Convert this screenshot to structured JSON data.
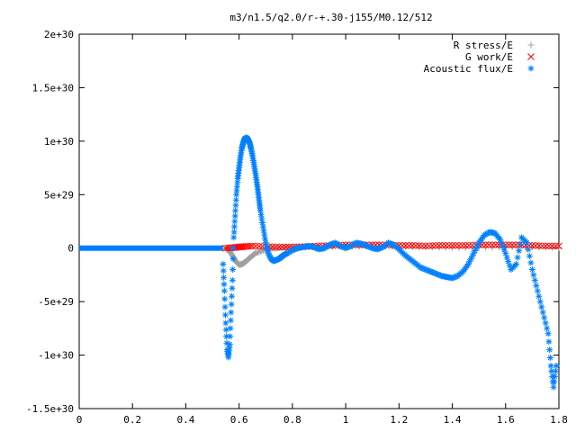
{
  "chart_data": {
    "type": "scatter",
    "title": "m3/n1.5/q2.0/r-+.30-j155/M0.12/512",
    "xlabel": "",
    "ylabel": "",
    "xlim": [
      0,
      1.8
    ],
    "ylim": [
      -1.5e+30,
      2e+30
    ],
    "x_ticks": [
      "0",
      "0.2",
      "0.4",
      "0.6",
      "0.8",
      "1",
      "1.2",
      "1.4",
      "1.6",
      "1.8"
    ],
    "x_tick_values": [
      0,
      0.2,
      0.4,
      0.6,
      0.8,
      1.0,
      1.2,
      1.4,
      1.6,
      1.8
    ],
    "y_ticks": [
      "-1.5e+30",
      "-1e+30",
      "-5e+29",
      "0",
      "5e+29",
      "1e+30",
      "1.5e+30",
      "2e+30"
    ],
    "y_tick_values": [
      -1.5e+30,
      -1e+30,
      -5e+29,
      0,
      5e+29,
      1e+30,
      1.5e+30,
      2e+30
    ],
    "grid": false,
    "legend_position": "top-right",
    "series": [
      {
        "name": "R stress/E",
        "marker": "+",
        "color": "#a0a0a0",
        "x": [
          0.55,
          0.56,
          0.57,
          0.58,
          0.59,
          0.6,
          0.61,
          0.62,
          0.63,
          0.64,
          0.65,
          0.66,
          0.68,
          0.7,
          0.72,
          0.74,
          0.76,
          0.78,
          0.8,
          0.85,
          0.9,
          1.0,
          1.1,
          1.2,
          1.3,
          1.4,
          1.5,
          1.6,
          1.7,
          1.8
        ],
        "y": [
          0,
          -2e+28,
          -5e+28,
          -9e+28,
          -1.3e+29,
          -1.55e+29,
          -1.5e+29,
          -1.35e+29,
          -1.15e+29,
          -9e+28,
          -7e+28,
          -5e+28,
          -3e+28,
          -1.5e+28,
          -5e+27,
          0,
          5e+27,
          8e+27,
          1e+28,
          1e+28,
          1e+28,
          1.5e+28,
          2e+28,
          1.5e+28,
          1e+28,
          5e+27,
          5e+27,
          1e+28,
          1e+28,
          5e+27
        ]
      },
      {
        "name": "G work/E",
        "marker": "x",
        "color": "#ff0000",
        "x": [
          0.55,
          0.58,
          0.6,
          0.62,
          0.65,
          0.7,
          0.75,
          0.8,
          0.85,
          0.9,
          0.95,
          1.0,
          1.05,
          1.1,
          1.15,
          1.2,
          1.25,
          1.3,
          1.35,
          1.4,
          1.45,
          1.5,
          1.55,
          1.6,
          1.65,
          1.7,
          1.75,
          1.8
        ],
        "y": [
          0,
          5e+27,
          1e+28,
          1.5e+28,
          2e+28,
          1.5e+28,
          1e+28,
          1e+28,
          1.5e+28,
          2e+28,
          2.5e+28,
          3e+28,
          3e+28,
          3e+28,
          3e+28,
          2.5e+28,
          2.5e+28,
          2e+28,
          2.5e+28,
          2.5e+28,
          2.5e+28,
          3e+28,
          3e+28,
          3e+28,
          3e+28,
          2.5e+28,
          2e+28,
          2e+28
        ]
      },
      {
        "name": "Acoustic flux/E",
        "marker": "*",
        "color": "#0080ff",
        "x": [
          0.54,
          0.545,
          0.55,
          0.555,
          0.56,
          0.565,
          0.57,
          0.575,
          0.58,
          0.585,
          0.59,
          0.595,
          0.6,
          0.605,
          0.61,
          0.615,
          0.62,
          0.625,
          0.63,
          0.635,
          0.64,
          0.645,
          0.65,
          0.655,
          0.66,
          0.665,
          0.67,
          0.675,
          0.68,
          0.69,
          0.7,
          0.71,
          0.72,
          0.73,
          0.74,
          0.75,
          0.76,
          0.77,
          0.78,
          0.8,
          0.82,
          0.84,
          0.86,
          0.88,
          0.9,
          0.92,
          0.94,
          0.96,
          0.98,
          1.0,
          1.02,
          1.04,
          1.06,
          1.08,
          1.1,
          1.12,
          1.14,
          1.16,
          1.18,
          1.2,
          1.22,
          1.24,
          1.26,
          1.28,
          1.3,
          1.32,
          1.34,
          1.36,
          1.38,
          1.4,
          1.42,
          1.44,
          1.46,
          1.48,
          1.5,
          1.52,
          1.54,
          1.56,
          1.58,
          1.6,
          1.62,
          1.64,
          1.66,
          1.68,
          1.7,
          1.72,
          1.74,
          1.76,
          1.77,
          1.78,
          1.79
        ],
        "y": [
          -1.5e+29,
          -4e+29,
          -7e+29,
          -9.5e+29,
          -1.02e+30,
          -9e+29,
          -6e+29,
          -3e+29,
          1e+29,
          3e+29,
          5e+29,
          6.5e+29,
          7.5e+29,
          8.5e+29,
          9.3e+29,
          9.8e+29,
          1.02e+30,
          1.03e+30,
          1.03e+30,
          1.01e+30,
          9.8e+29,
          9.3e+29,
          8.7e+29,
          8e+29,
          7.2e+29,
          6.4e+29,
          5.5e+29,
          4.5e+29,
          3.5e+29,
          2e+29,
          5e+28,
          -5e+28,
          -1e+29,
          -1.2e+29,
          -1.1e+29,
          -1e+29,
          -8e+28,
          -6e+28,
          -5e+28,
          -2e+28,
          0,
          1e+28,
          2e+28,
          1e+28,
          -1e+28,
          0,
          3e+28,
          5e+28,
          2e+28,
          0,
          2e+28,
          5e+28,
          4e+28,
          2e+28,
          0,
          -1e+28,
          1e+28,
          5e+28,
          3e+28,
          -1e+28,
          -6e+28,
          -1e+29,
          -1.4e+29,
          -1.8e+29,
          -2e+29,
          -2.2e+29,
          -2.4e+29,
          -2.6e+29,
          -2.7e+29,
          -2.8e+29,
          -2.6e+29,
          -2.2e+29,
          -1.5e+29,
          -5e+28,
          5e+28,
          1.2e+29,
          1.5e+29,
          1.4e+29,
          8e+28,
          -5e+28,
          -2e+29,
          -1.5e+29,
          1e+29,
          5e+28,
          -2e+29,
          -4e+29,
          -6e+29,
          -8e+29,
          -1.1e+30,
          -1.3e+30,
          -1.1e+30
        ]
      }
    ]
  }
}
